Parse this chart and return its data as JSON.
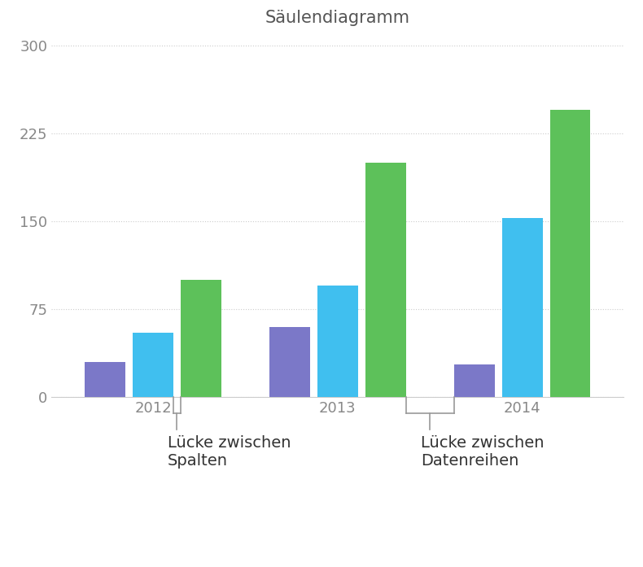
{
  "title": "Säulendiagramm",
  "categories": [
    "2012",
    "2013",
    "2014"
  ],
  "series": {
    "purple": [
      30,
      60,
      28
    ],
    "cyan": [
      55,
      95,
      153
    ],
    "green": [
      100,
      200,
      245
    ]
  },
  "colors": {
    "purple": "#7B78C8",
    "cyan": "#40BFEF",
    "green": "#5DC15A"
  },
  "ylim": [
    0,
    310
  ],
  "yticks": [
    0,
    75,
    150,
    225,
    300
  ],
  "background_color": "#ffffff",
  "grid_color": "#cccccc",
  "title_fontsize": 15,
  "tick_fontsize": 13,
  "annotation_left_text": "Lücke zwischen\nSpalten",
  "annotation_right_text": "Lücke zwischen\nDatenreihen"
}
